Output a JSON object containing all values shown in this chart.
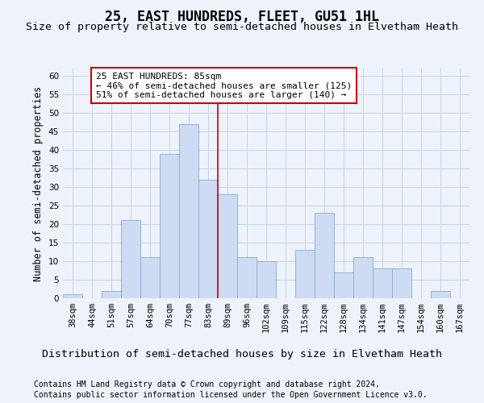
{
  "title": "25, EAST HUNDREDS, FLEET, GU51 1HL",
  "subtitle": "Size of property relative to semi-detached houses in Elvetham Heath",
  "xlabel_bottom": "Distribution of semi-detached houses by size in Elvetham Heath",
  "ylabel": "Number of semi-detached properties",
  "footnote1": "Contains HM Land Registry data © Crown copyright and database right 2024.",
  "footnote2": "Contains public sector information licensed under the Open Government Licence v3.0.",
  "categories": [
    "38sqm",
    "44sqm",
    "51sqm",
    "57sqm",
    "64sqm",
    "70sqm",
    "77sqm",
    "83sqm",
    "89sqm",
    "96sqm",
    "102sqm",
    "109sqm",
    "115sqm",
    "122sqm",
    "128sqm",
    "134sqm",
    "141sqm",
    "147sqm",
    "154sqm",
    "160sqm",
    "167sqm"
  ],
  "values": [
    1,
    0,
    2,
    21,
    11,
    39,
    47,
    32,
    28,
    11,
    10,
    0,
    13,
    23,
    7,
    11,
    8,
    8,
    0,
    2,
    0
  ],
  "bar_color": "#cddcf3",
  "bar_edge_color": "#8aaad4",
  "grid_color": "#c8d4e8",
  "vline_x": 7.5,
  "vline_color": "#cc0000",
  "annotation_text": "25 EAST HUNDREDS: 85sqm\n← 46% of semi-detached houses are smaller (125)\n51% of semi-detached houses are larger (140) →",
  "annotation_box_color": "white",
  "annotation_box_edge": "#cc0000",
  "ylim": [
    0,
    62
  ],
  "yticks": [
    0,
    5,
    10,
    15,
    20,
    25,
    30,
    35,
    40,
    45,
    50,
    55,
    60
  ],
  "title_fontsize": 12,
  "subtitle_fontsize": 9.5,
  "ylabel_fontsize": 8.5,
  "xlabel_bottom_fontsize": 9.5,
  "tick_fontsize": 7.5,
  "annotation_fontsize": 8,
  "footnote_fontsize": 7,
  "background_color": "#eef2fa"
}
